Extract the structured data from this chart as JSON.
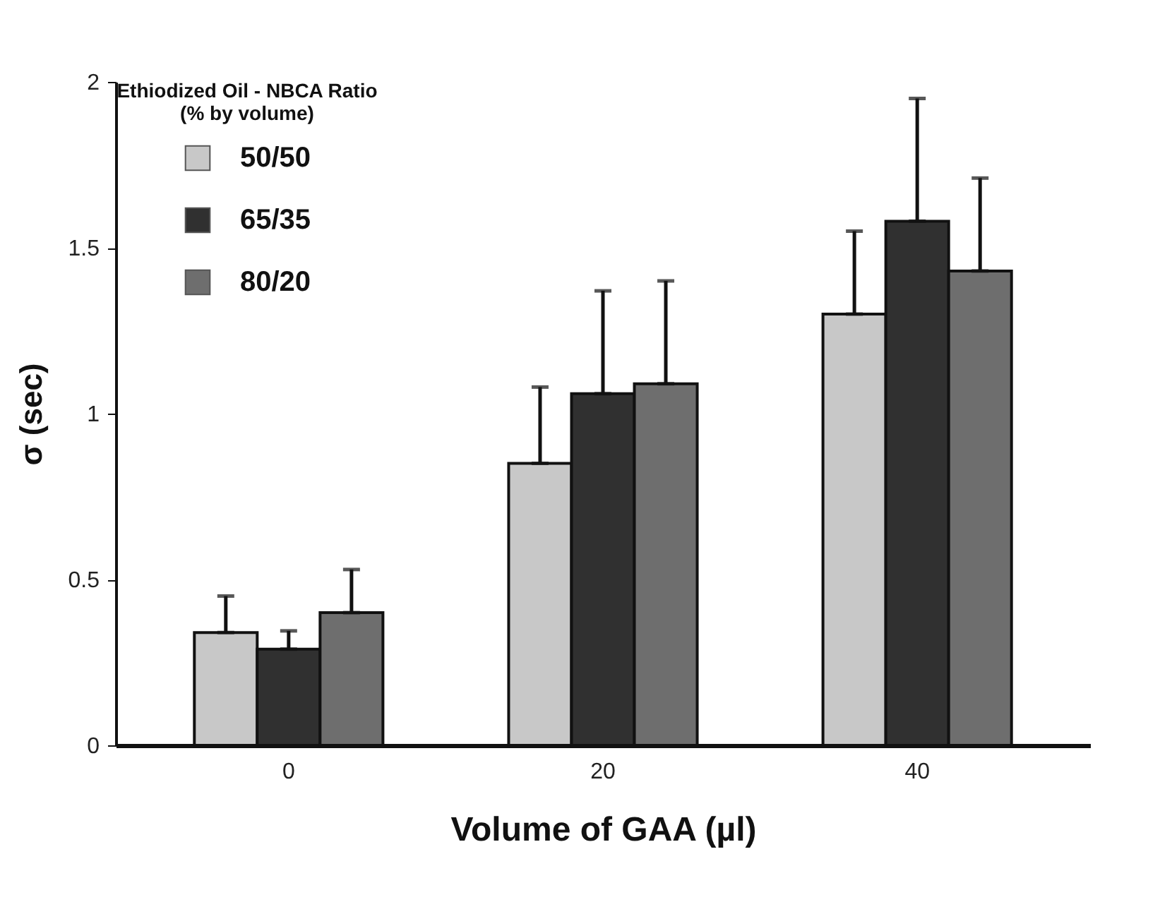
{
  "chart_data": {
    "type": "bar",
    "xlabel": "Volume of GAA (µl)",
    "ylabel": "σ (sec)",
    "legend_title": "Ethiodized Oil - NBCA Ratio\n(% by volume)",
    "categories": [
      "0",
      "20",
      "40"
    ],
    "series": [
      {
        "name": "50/50",
        "color": "#c8c8c8",
        "values": [
          0.34,
          0.85,
          1.3
        ],
        "errors": [
          [
            0.34,
            0.45
          ],
          [
            0.85,
            1.08
          ],
          [
            1.3,
            1.55
          ]
        ]
      },
      {
        "name": "65/35",
        "color": "#303030",
        "values": [
          0.29,
          1.06,
          1.58
        ],
        "errors": [
          [
            0.29,
            0.345
          ],
          [
            1.06,
            1.37
          ],
          [
            1.58,
            1.95
          ]
        ]
      },
      {
        "name": "80/20",
        "color": "#6e6e6e",
        "values": [
          0.4,
          1.09,
          1.43
        ],
        "errors": [
          [
            0.4,
            0.53
          ],
          [
            1.09,
            1.4
          ],
          [
            1.43,
            1.71
          ]
        ]
      }
    ],
    "ylim": [
      0,
      2
    ],
    "yticks": [
      0,
      0.5,
      1,
      1.5,
      2
    ],
    "grid": false,
    "legend": "top left"
  }
}
